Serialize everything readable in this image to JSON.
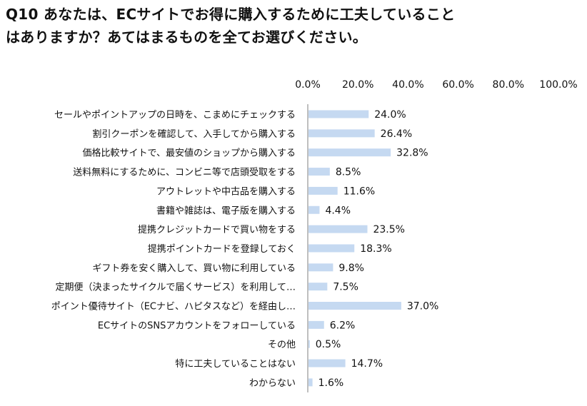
{
  "title": {
    "line1": "Q10 あなたは、ECサイトでお得に購入するために工夫していること",
    "line2": "はありますか？あてはまるものを全てお選びください。"
  },
  "colors": {
    "bar": "#c5d9f1",
    "axis": "#7f7f7f",
    "text": "#111111"
  },
  "chart_data": {
    "type": "bar",
    "orientation": "horizontal",
    "title": "Q10 あなたは、ECサイトでお得に購入するために工夫していることはありますか？あてはまるものを全てお選びください。",
    "categories": [
      "セールやポイントアップの日時を、こまめにチェックする",
      "割引クーポンを確認して、入手してから購入する",
      "価格比較サイトで、最安値のショップから購入する",
      "送料無料にするために、コンビニ等で店頭受取をする",
      "アウトレットや中古品を購入する",
      "書籍や雑誌は、電子版を購入する",
      "提携クレジットカードで買い物をする",
      "提携ポイントカードを登録しておく",
      "ギフト券を安く購入して、買い物に利用している",
      "定期便（決まったサイクルで届くサービス）を利用して…",
      "ポイント優待サイト（ECナビ、ハピタスなど）を経由し…",
      "ECサイトのSNSアカウントをフォローしている",
      "その他",
      "特に工夫していることはない",
      "わからない"
    ],
    "values": [
      24.0,
      26.4,
      32.8,
      8.5,
      11.6,
      4.4,
      23.5,
      18.3,
      9.8,
      7.5,
      37.0,
      6.2,
      0.5,
      14.7,
      1.6
    ],
    "value_labels": [
      "24.0%",
      "26.4%",
      "32.8%",
      "8.5%",
      "11.6%",
      "4.4%",
      "23.5%",
      "18.3%",
      "9.8%",
      "7.5%",
      "37.0%",
      "6.2%",
      "0.5%",
      "14.7%",
      "1.6%"
    ],
    "xlim": [
      0,
      100
    ],
    "xticks": [
      0,
      20,
      40,
      60,
      80,
      100
    ],
    "xtick_labels": [
      "0.0%",
      "20.0%",
      "40.0%",
      "60.0%",
      "80.0%",
      "100.0%"
    ],
    "axis_position": "top",
    "grid": false,
    "legend": "none"
  }
}
